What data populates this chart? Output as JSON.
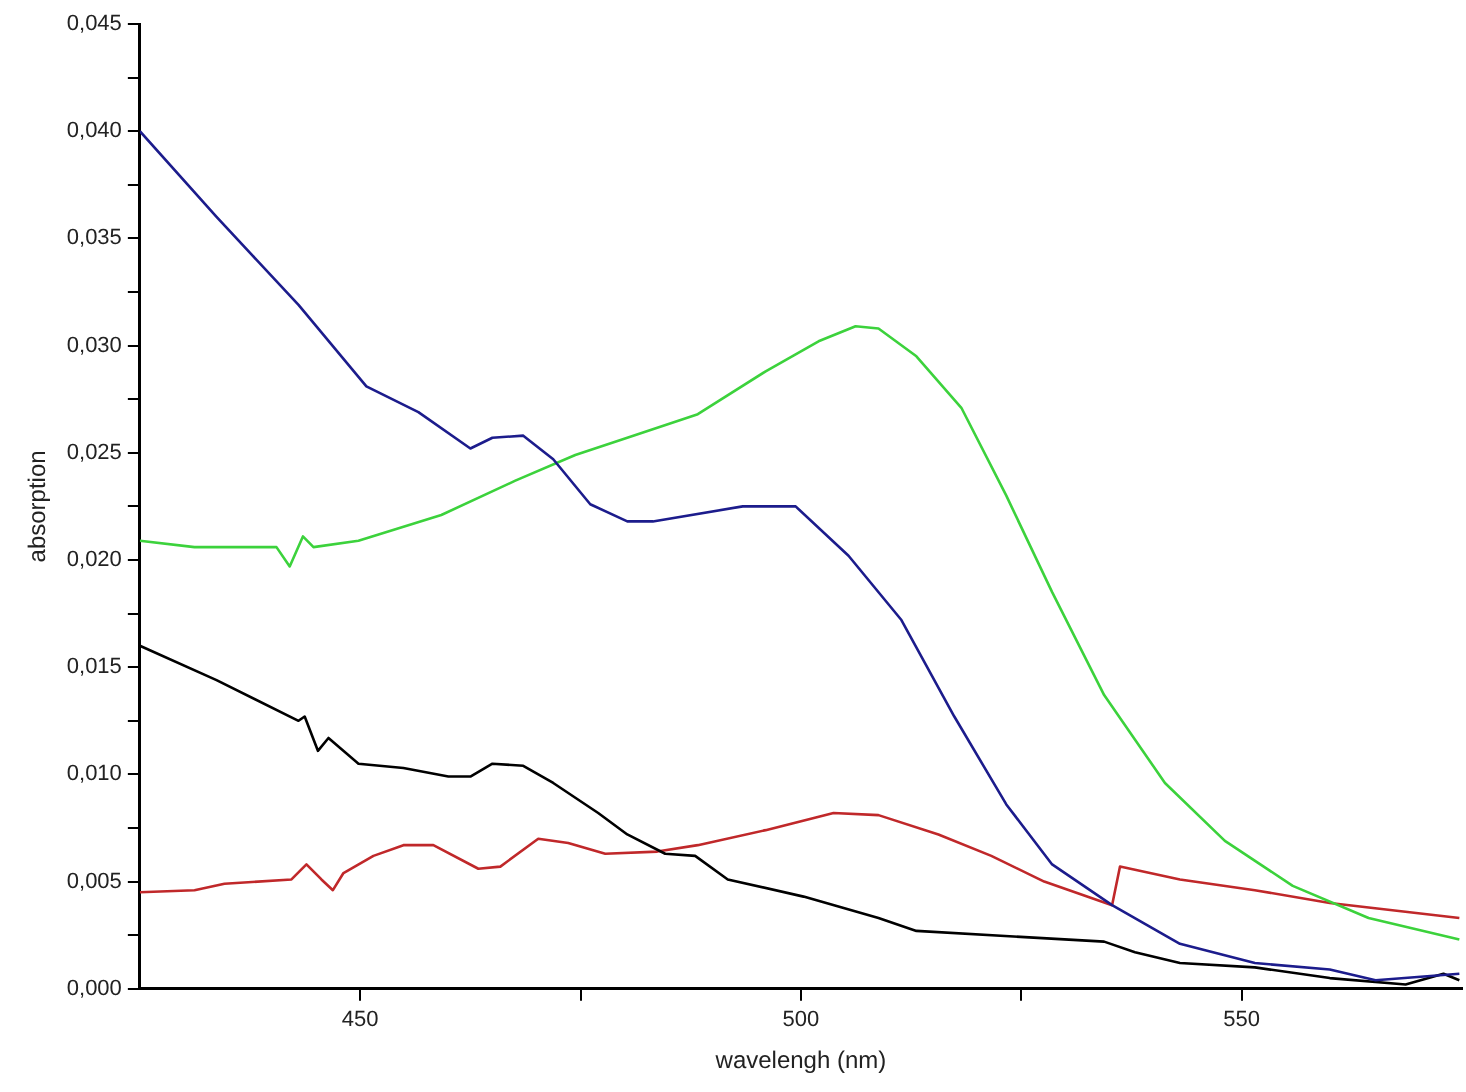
{
  "chart_data": {
    "type": "line",
    "xlabel": "wavelengh (nm)",
    "ylabel": "absorption",
    "xlim": [
      425,
      575
    ],
    "ylim": [
      0,
      0.045
    ],
    "xticks": [
      {
        "value": 450,
        "label": "450"
      },
      {
        "value": 475,
        "label": null
      },
      {
        "value": 500,
        "label": "500"
      },
      {
        "value": 525,
        "label": null
      },
      {
        "value": 550,
        "label": "550"
      }
    ],
    "yticks": [
      {
        "value": 0,
        "label": "0,000"
      },
      {
        "value": 0.0025,
        "label": null
      },
      {
        "value": 0.005,
        "label": "0,005"
      },
      {
        "value": 0.0075,
        "label": null
      },
      {
        "value": 0.01,
        "label": "0,010"
      },
      {
        "value": 0.0125,
        "label": null
      },
      {
        "value": 0.015,
        "label": "0,015"
      },
      {
        "value": 0.0175,
        "label": null
      },
      {
        "value": 0.02,
        "label": "0,020"
      },
      {
        "value": 0.0225,
        "label": null
      },
      {
        "value": 0.025,
        "label": "0,025"
      },
      {
        "value": 0.0275,
        "label": null
      },
      {
        "value": 0.03,
        "label": "0,030"
      },
      {
        "value": 0.0325,
        "label": null
      },
      {
        "value": 0.035,
        "label": "0,035"
      },
      {
        "value": 0.0375,
        "label": null
      },
      {
        "value": 0.04,
        "label": "0,040"
      },
      {
        "value": 0.0425,
        "label": null
      },
      {
        "value": 0.045,
        "label": "0,045"
      }
    ],
    "grid": false,
    "legend": false,
    "marker": "none",
    "line_style": "solid",
    "series": [
      {
        "color": "#1c1c8c",
        "x": [
          425,
          433.7,
          443,
          450.7,
          456.6,
          462.5,
          465,
          468.5,
          471.9,
          476.1,
          480.3,
          483.2,
          493.4,
          499.4,
          505.4,
          511.4,
          517.4,
          523.3,
          528.5,
          535.3,
          543,
          551.5,
          560,
          565.2,
          574.7
        ],
        "values": [
          0.04,
          0.036,
          0.0319,
          0.0281,
          0.0269,
          0.0252,
          0.0257,
          0.0258,
          0.0247,
          0.0226,
          0.0218,
          0.0218,
          0.0225,
          0.0225,
          0.0202,
          0.0172,
          0.0127,
          0.0086,
          0.0058,
          0.0039,
          0.0021,
          0.0012,
          0.0009,
          0.0004,
          0.0007
        ]
      },
      {
        "color": "#3cd23c",
        "x": [
          425,
          431.2,
          440.5,
          442,
          443.5,
          444.7,
          449.8,
          459.2,
          467.6,
          474.4,
          480.3,
          488.3,
          496,
          502,
          506.2,
          508.8,
          513.1,
          518.2,
          523.3,
          528.5,
          534.4,
          541.3,
          548.1,
          555.8,
          564.4,
          574.7
        ],
        "values": [
          0.0209,
          0.0206,
          0.0206,
          0.0197,
          0.0211,
          0.0206,
          0.0209,
          0.0221,
          0.0237,
          0.0249,
          0.0257,
          0.0268,
          0.0288,
          0.0302,
          0.0309,
          0.0308,
          0.0295,
          0.0271,
          0.023,
          0.0185,
          0.0137,
          0.0096,
          0.0069,
          0.0048,
          0.0033,
          0.0023
        ]
      },
      {
        "color": "#000000",
        "x": [
          425,
          433.7,
          443,
          443.7,
          445.2,
          446.4,
          449.8,
          454.9,
          460,
          462.5,
          465,
          468.5,
          471.9,
          477,
          480.3,
          484.6,
          488,
          491.7,
          500.3,
          508.8,
          513.1,
          525.9,
          534.4,
          537.9,
          543,
          551.5,
          560,
          568.6,
          572.9,
          574.7
        ],
        "values": [
          0.016,
          0.0144,
          0.0125,
          0.0127,
          0.0111,
          0.0117,
          0.0105,
          0.0103,
          0.0099,
          0.0099,
          0.0105,
          0.0104,
          0.0096,
          0.0082,
          0.0072,
          0.0063,
          0.0062,
          0.0051,
          0.0043,
          0.0033,
          0.0027,
          0.0024,
          0.0022,
          0.0017,
          0.0012,
          0.001,
          0.0005,
          0.0002,
          0.0007,
          0.0004
        ]
      },
      {
        "color": "#c0282a",
        "x": [
          425,
          431.2,
          434.6,
          442.2,
          443.9,
          445.6,
          446.9,
          448.1,
          451.5,
          454.9,
          458.3,
          463.4,
          465.9,
          470.2,
          473.6,
          477.8,
          483.7,
          488.3,
          496,
          503.7,
          508.8,
          515.6,
          521.6,
          527.6,
          535.3,
          536.2,
          543,
          551.5,
          560,
          574.7
        ],
        "values": [
          0.0045,
          0.0046,
          0.0049,
          0.0051,
          0.0058,
          0.0051,
          0.0046,
          0.0054,
          0.0062,
          0.0067,
          0.0067,
          0.0056,
          0.0057,
          0.007,
          0.0068,
          0.0063,
          0.0064,
          0.0067,
          0.0074,
          0.0082,
          0.0081,
          0.0072,
          0.0062,
          0.005,
          0.0039,
          0.0057,
          0.0051,
          0.0046,
          0.004,
          0.0033
        ]
      }
    ]
  }
}
